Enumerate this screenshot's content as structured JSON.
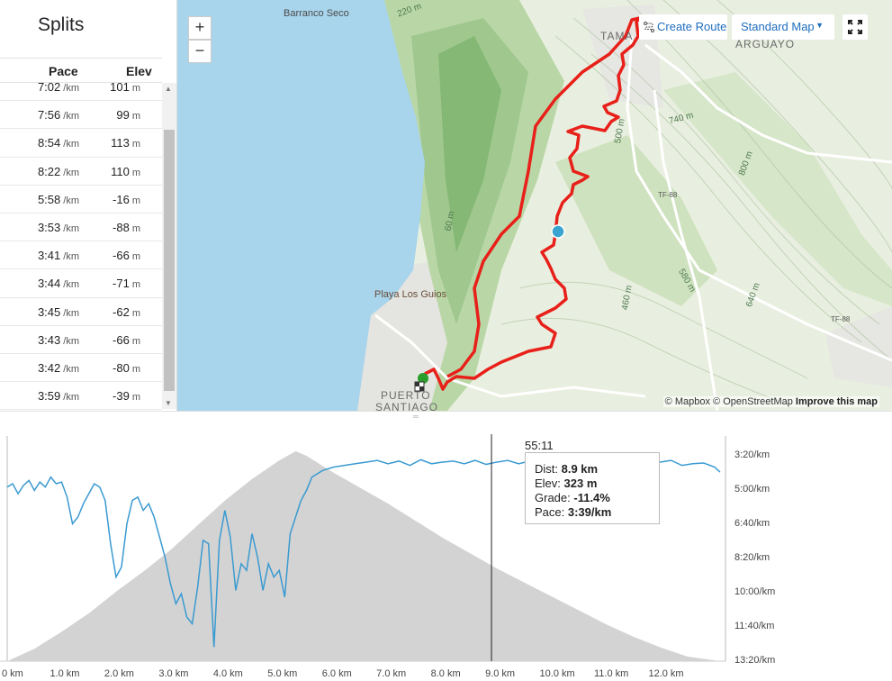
{
  "splits": {
    "title": "Splits",
    "columns": {
      "pace": "Pace",
      "elev": "Elev"
    },
    "pace_unit": "/km",
    "elev_unit": "m",
    "rows": [
      {
        "pace": "7:02",
        "elev": "101"
      },
      {
        "pace": "7:56",
        "elev": "99"
      },
      {
        "pace": "8:54",
        "elev": "113"
      },
      {
        "pace": "8:22",
        "elev": "110"
      },
      {
        "pace": "5:58",
        "elev": "-16"
      },
      {
        "pace": "3:53",
        "elev": "-88"
      },
      {
        "pace": "3:41",
        "elev": "-66"
      },
      {
        "pace": "3:44",
        "elev": "-71"
      },
      {
        "pace": "3:45",
        "elev": "-62"
      },
      {
        "pace": "3:43",
        "elev": "-66"
      },
      {
        "pace": "3:42",
        "elev": "-80"
      },
      {
        "pace": "3:59",
        "elev": "-39"
      }
    ]
  },
  "map": {
    "zoom_in": "+",
    "zoom_out": "−",
    "create_route": "Create Route",
    "map_style": "Standard Map",
    "labels": {
      "barranco_seco": "Barranco Seco",
      "playa_los_guios": "Playa Los Guios",
      "puerto": "PUERTO",
      "santiago": "SANTIAGO",
      "tama": "TAMA",
      "arguayo": "ARGUAYO",
      "e220": "220 m",
      "e500": "500 m",
      "e740": "740 m",
      "e800": "800 m",
      "e580": "580 m",
      "e640": "640 m",
      "e60": "60 m",
      "e460": "460 m",
      "tf88a": "TF-88",
      "tf88b": "TF-88"
    },
    "attribution": {
      "mapbox": "© Mapbox",
      "osm": "© OpenStreetMap",
      "improve": "Improve this map"
    },
    "colors": {
      "route": "#e8201a",
      "water": "#a8d4ec",
      "start": "#2a9e2a",
      "marker": "#3aa3d0"
    }
  },
  "chart": {
    "cursor_time": "55:11",
    "tooltip": {
      "dist_label": "Dist:",
      "dist": "8.9 km",
      "elev_label": "Elev:",
      "elev": "323 m",
      "grade_label": "Grade:",
      "grade": "-11.4%",
      "pace_label": "Pace:",
      "pace": "3:39/km"
    }
  },
  "chart_data": {
    "type": "area",
    "x_ticks": [
      "0 km",
      "1.0 km",
      "2.0 km",
      "3.0 km",
      "4.0 km",
      "5.0 km",
      "6.0 km",
      "7.0 km",
      "8.0 km",
      "9.0 km",
      "10.0 km",
      "11.0 km",
      "12.0 km"
    ],
    "y_ticks_right": [
      "3:20/km",
      "5:00/km",
      "6:40/km",
      "8:20/km",
      "10:00/km",
      "11:40/km",
      "13:20/km"
    ],
    "xlim": [
      0,
      13.2
    ],
    "pace_lim_sec": [
      200,
      800
    ],
    "cursor_km": 8.9,
    "series": [
      {
        "kind": "elevation",
        "color": "#d3d3d3",
        "x": [
          0,
          0.5,
          1,
          1.5,
          2,
          2.5,
          3,
          3.5,
          4,
          4.5,
          5,
          5.3,
          5.5,
          6,
          6.5,
          7,
          7.5,
          8,
          8.5,
          9,
          9.5,
          10,
          10.5,
          11,
          11.5,
          12,
          12.5,
          13.1
        ],
        "y": [
          0,
          40,
          95,
          155,
          225,
          290,
          360,
          440,
          520,
          590,
          650,
          680,
          665,
          610,
          560,
          510,
          455,
          400,
          350,
          300,
          255,
          210,
          165,
          120,
          80,
          45,
          15,
          0
        ]
      },
      {
        "kind": "pace",
        "color": "#3a9ad1",
        "x": [
          0,
          0.1,
          0.2,
          0.3,
          0.4,
          0.5,
          0.6,
          0.7,
          0.8,
          0.9,
          1.0,
          1.1,
          1.2,
          1.3,
          1.4,
          1.5,
          1.6,
          1.7,
          1.8,
          1.9,
          2.0,
          2.1,
          2.2,
          2.3,
          2.4,
          2.5,
          2.6,
          2.7,
          2.8,
          2.9,
          3.0,
          3.1,
          3.2,
          3.3,
          3.4,
          3.5,
          3.6,
          3.7,
          3.8,
          3.9,
          4.0,
          4.1,
          4.2,
          4.3,
          4.4,
          4.5,
          4.6,
          4.7,
          4.8,
          4.9,
          5.0,
          5.1,
          5.2,
          5.3,
          5.4,
          5.5,
          5.6,
          5.7,
          5.8,
          6.0,
          6.2,
          6.4,
          6.6,
          6.8,
          7.0,
          7.2,
          7.4,
          7.6,
          7.8,
          8.0,
          8.2,
          8.4,
          8.6,
          8.8,
          9.0,
          9.2,
          9.4,
          9.6,
          9.8,
          10.0,
          10.2,
          10.4,
          10.6,
          10.8,
          11.0,
          11.2,
          11.4,
          11.6,
          11.8,
          12.0,
          12.2,
          12.4,
          12.6,
          12.8,
          13.0,
          13.1
        ],
        "y": [
          310,
          300,
          330,
          305,
          290,
          320,
          295,
          310,
          280,
          300,
          295,
          340,
          420,
          400,
          360,
          330,
          300,
          310,
          350,
          480,
          580,
          550,
          420,
          350,
          340,
          380,
          360,
          400,
          460,
          520,
          600,
          660,
          630,
          700,
          720,
          610,
          470,
          480,
          790,
          470,
          380,
          460,
          620,
          540,
          560,
          450,
          520,
          620,
          540,
          580,
          560,
          640,
          450,
          400,
          350,
          320,
          280,
          270,
          260,
          250,
          245,
          240,
          235,
          230,
          240,
          232,
          245,
          228,
          240,
          235,
          232,
          240,
          230,
          242,
          235,
          230,
          240,
          232,
          238,
          230,
          240,
          235,
          228,
          240,
          232,
          245,
          238,
          232,
          240,
          235,
          230,
          245,
          240,
          238,
          250,
          265
        ]
      }
    ]
  }
}
